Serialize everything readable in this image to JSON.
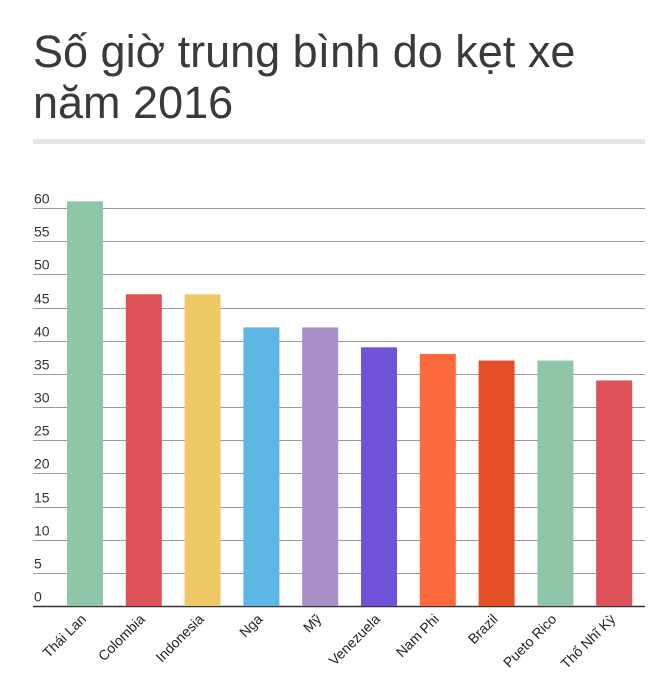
{
  "chart_data": {
    "type": "bar",
    "title": "Số giờ trung bình do kẹt xe năm 2016",
    "xlabel": "",
    "ylabel": "",
    "ylim": [
      0,
      60
    ],
    "yticks": [
      0,
      5,
      10,
      15,
      20,
      25,
      30,
      35,
      40,
      45,
      50,
      55,
      60
    ],
    "grid": true,
    "categories": [
      "Thái Lan",
      "Colombia",
      "Indonesia",
      "Nga",
      "Mỹ",
      "Venezuela",
      "Nam Phi",
      "Brazil",
      "Pueto Rico",
      "Thổ Nhĩ Kỳ"
    ],
    "values": [
      61,
      47,
      47,
      42,
      42,
      39,
      38,
      37,
      37,
      34
    ],
    "colors": [
      "#8fc6a8",
      "#dc5257",
      "#efc966",
      "#5eb6e4",
      "#a98fc7",
      "#6f52d8",
      "#fb6a3a",
      "#e44f27",
      "#8fc6a8",
      "#dc5257"
    ]
  }
}
